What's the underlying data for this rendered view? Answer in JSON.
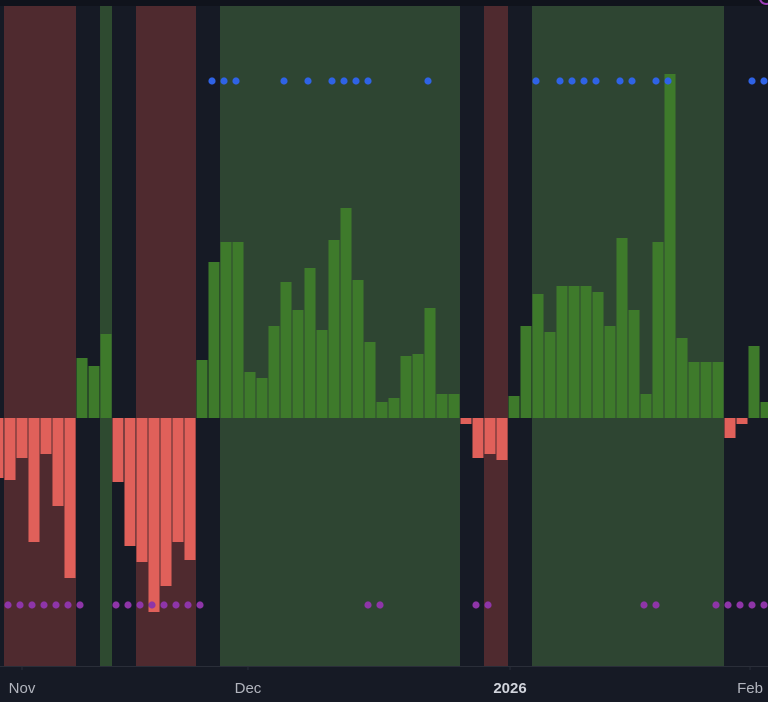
{
  "chart_data": {
    "type": "bar",
    "x": [
      0,
      1,
      2,
      3,
      4,
      5,
      6,
      7,
      8,
      9,
      10,
      11,
      12,
      13,
      14,
      15,
      16,
      17,
      18,
      19,
      20,
      21,
      22,
      23,
      24,
      25,
      26,
      27,
      28,
      29,
      30,
      31,
      32,
      33,
      34,
      35,
      36,
      37,
      38,
      39,
      40,
      41,
      42,
      43,
      44,
      45,
      46,
      47,
      48,
      49,
      50,
      51,
      52,
      53,
      54,
      55,
      56,
      57,
      58,
      59,
      60,
      61,
      62,
      63,
      64
    ],
    "values": [
      -15,
      -15.5,
      -10,
      -31,
      -9,
      -22,
      -40,
      15,
      13,
      21,
      -16,
      -32,
      -36,
      -48.5,
      -42,
      -31,
      -35.5,
      14.5,
      39,
      44,
      44,
      11.5,
      10,
      23,
      34,
      27,
      37.5,
      22,
      44.5,
      52.5,
      34.5,
      19,
      4,
      5,
      15.5,
      16,
      27.5,
      6,
      6,
      -1.5,
      -10,
      -9,
      -10.5,
      5.5,
      23,
      31,
      21.5,
      33,
      33,
      33,
      31.5,
      23,
      45,
      27,
      6,
      44,
      86,
      20,
      14,
      14,
      14,
      -5,
      -1.5,
      18,
      4
    ],
    "positive_color": "#3e7a2b",
    "negative_color": "#e0605a",
    "xlim": [
      0.1667,
      64.1667
    ],
    "ylim": [
      -62,
      103
    ],
    "xticks": [
      {
        "value": 2,
        "label": "Nov"
      },
      {
        "value": 20.83,
        "label": "Dec"
      },
      {
        "value": 42.67,
        "label": "2026"
      },
      {
        "value": 62.67,
        "label": "Feb"
      }
    ],
    "regions": [
      {
        "start": 0.5,
        "end": 6.5,
        "color": "#4f2a2f"
      },
      {
        "start": 8.5,
        "end": 9.5,
        "color": "#2e4a30"
      },
      {
        "start": 11.5,
        "end": 16.5,
        "color": "#4f2a2f"
      },
      {
        "start": 18.5,
        "end": 38.5,
        "color": "#2e4532"
      },
      {
        "start": 40.5,
        "end": 42.5,
        "color": "#4f2a2f"
      },
      {
        "start": 44.5,
        "end": 60.5,
        "color": "#2e4532"
      }
    ],
    "markers": [
      {
        "color": "#2f63e6",
        "x": [
          18,
          19,
          20,
          24,
          26,
          28,
          29,
          30,
          31,
          36,
          45,
          47,
          48,
          49,
          50,
          52,
          53,
          55,
          56,
          63,
          64
        ]
      },
      {
        "color": "#8e35a8",
        "x": [
          1,
          2,
          3,
          4,
          5,
          6,
          7,
          10,
          11,
          12,
          13,
          14,
          15,
          16,
          17,
          31,
          32,
          40,
          41,
          54,
          55,
          60,
          61,
          62,
          63,
          64
        ]
      }
    ]
  }
}
